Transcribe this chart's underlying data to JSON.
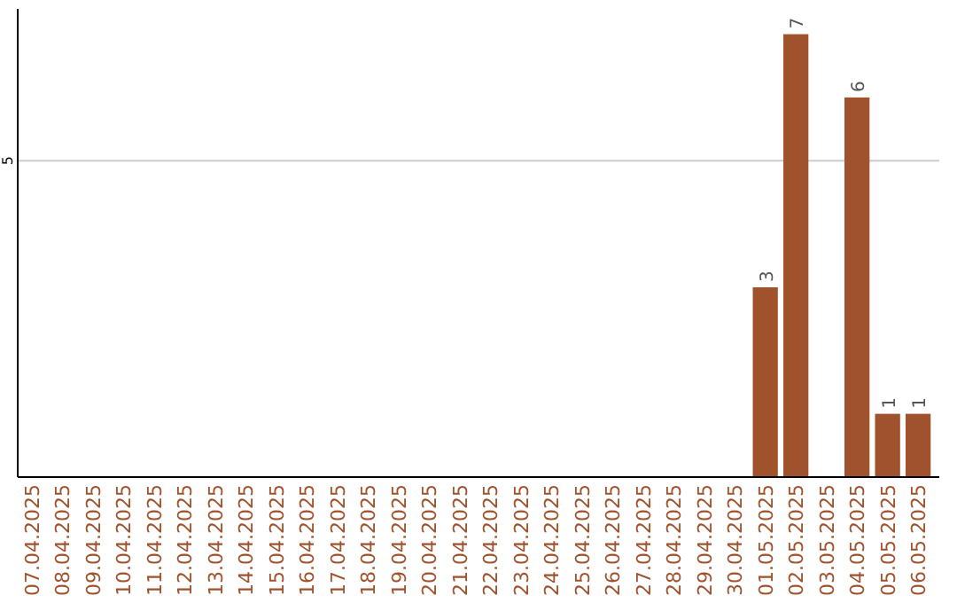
{
  "chart_data": {
    "type": "bar",
    "categories": [
      "07.04.2025",
      "08.04.2025",
      "09.04.2025",
      "10.04.2025",
      "11.04.2025",
      "12.04.2025",
      "13.04.2025",
      "14.04.2025",
      "15.04.2025",
      "16.04.2025",
      "17.04.2025",
      "18.04.2025",
      "19.04.2025",
      "20.04.2025",
      "21.04.2025",
      "22.04.2025",
      "23.04.2025",
      "24.04.2025",
      "25.04.2025",
      "26.04.2025",
      "27.04.2025",
      "28.04.2025",
      "29.04.2025",
      "30.04.2025",
      "01.05.2025",
      "02.05.2025",
      "03.05.2025",
      "04.05.2025",
      "05.05.2025",
      "06.05.2025"
    ],
    "values": [
      null,
      null,
      null,
      null,
      null,
      null,
      null,
      null,
      null,
      null,
      null,
      null,
      null,
      null,
      null,
      null,
      null,
      null,
      null,
      null,
      null,
      null,
      null,
      null,
      3,
      7,
      null,
      6,
      1,
      1
    ],
    "color": "#a0522d",
    "ylim": [
      0,
      7.4
    ],
    "yticks": [
      5
    ],
    "grid": "y",
    "data_labels": true
  }
}
